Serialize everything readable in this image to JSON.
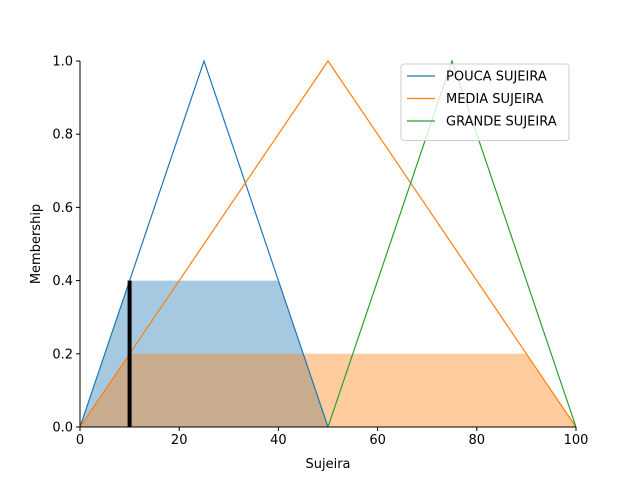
{
  "chart_data": {
    "type": "line",
    "title": "",
    "xlabel": "Sujeira",
    "ylabel": "Membership",
    "xlim": [
      0,
      100
    ],
    "ylim": [
      0,
      1.0
    ],
    "xticks": [
      0,
      20,
      40,
      60,
      80,
      100
    ],
    "xtick_labels": [
      "0",
      "20",
      "40",
      "60",
      "80",
      "100"
    ],
    "yticks": [
      0.0,
      0.2,
      0.4,
      0.6,
      0.8,
      1.0
    ],
    "ytick_labels": [
      "0.0",
      "0.2",
      "0.4",
      "0.6",
      "0.8",
      "1.0"
    ],
    "grid": false,
    "legend_position": "top-right",
    "series": [
      {
        "name": "POUCA SUJEIRA",
        "color": "#1f77b4",
        "x": [
          0,
          25,
          50
        ],
        "y": [
          0,
          1,
          0
        ]
      },
      {
        "name": "MEDIA SUJEIRA",
        "color": "#ff7f0e",
        "x": [
          0,
          50,
          100
        ],
        "y": [
          0,
          1,
          0
        ]
      },
      {
        "name": "GRANDE SUJEIRA",
        "color": "#2ca02c",
        "x": [
          50,
          75,
          100
        ],
        "y": [
          0,
          1,
          0
        ]
      }
    ],
    "activations": [
      {
        "series": "POUCA SUJEIRA",
        "color": "#1f77b4",
        "level": 0.4,
        "x": [
          0,
          10,
          40,
          50
        ],
        "y": [
          0,
          0.4,
          0.4,
          0
        ]
      },
      {
        "series": "MEDIA SUJEIRA",
        "color": "#ff7f0e",
        "level": 0.2,
        "x": [
          0,
          10,
          90,
          100
        ],
        "y": [
          0,
          0.2,
          0.2,
          0
        ]
      }
    ],
    "input_marker": {
      "x": 10,
      "y": 0.4,
      "color": "#000000"
    }
  }
}
